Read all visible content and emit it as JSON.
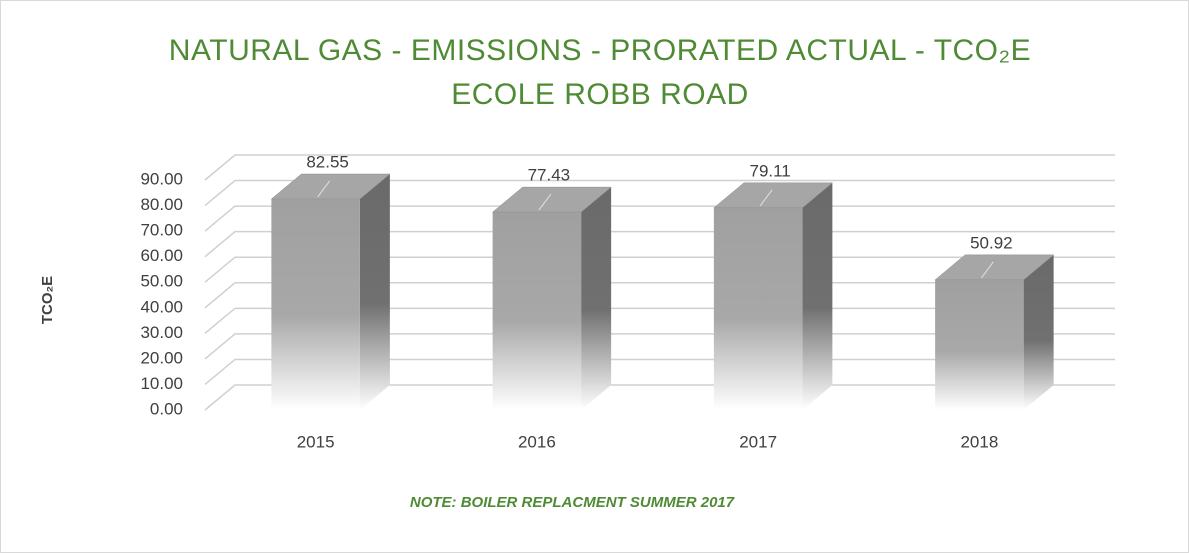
{
  "chart_data": {
    "type": "bar",
    "title": "NATURAL GAS - EMISSIONS - PRORATED ACTUAL - TCO₂E",
    "subtitle": "ECOLE ROBB ROAD",
    "y_label": "TCO₂E",
    "annotations": [
      "NOTE: BOILER REPLACMENT SUMMER 2017"
    ],
    "categories": [
      "2015",
      "2016",
      "2017",
      "2018"
    ],
    "values": [
      82.55,
      77.43,
      79.11,
      50.92
    ],
    "color": "#a6a6a6",
    "ylim": [
      0,
      90
    ],
    "yticks": [
      {
        "value": 0,
        "label": "0.00"
      },
      {
        "value": 10,
        "label": "10.00"
      },
      {
        "value": 20,
        "label": "20.00"
      },
      {
        "value": 30,
        "label": "30.00"
      },
      {
        "value": 40,
        "label": "40.00"
      },
      {
        "value": 50,
        "label": "50.00"
      },
      {
        "value": 60,
        "label": "60.00"
      },
      {
        "value": 70,
        "label": "70.00"
      },
      {
        "value": 80,
        "label": "80.00"
      },
      {
        "value": 90,
        "label": "90.00"
      }
    ],
    "grid": true
  }
}
